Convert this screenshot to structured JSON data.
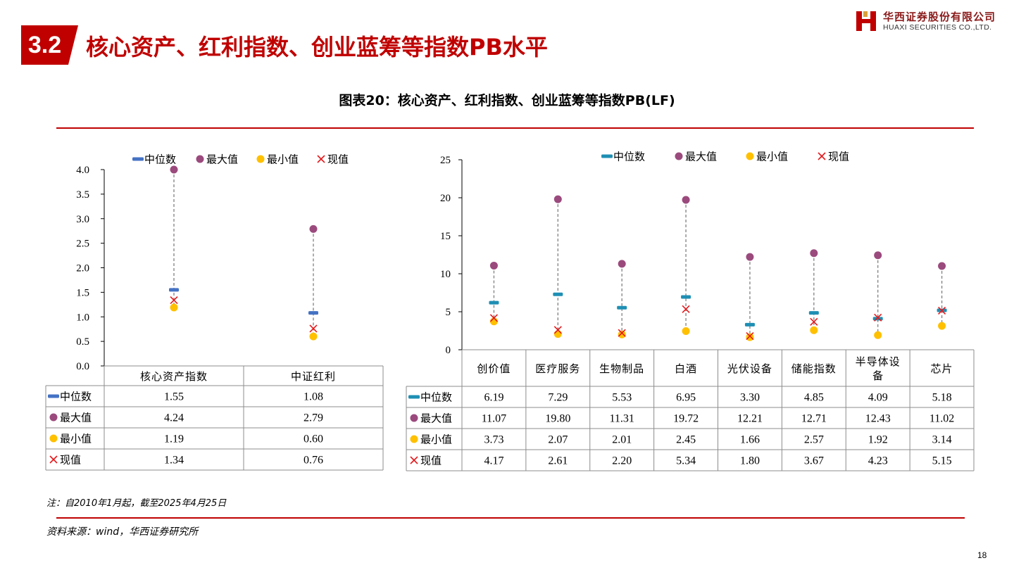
{
  "header": {
    "section_number": "3.2",
    "title": "核心资产、红利指数、创业蓝筹等指数PB水平",
    "logo_cn": "华西证券股份有限公司",
    "logo_en": "HUAXI SECURITIES CO.,LTD."
  },
  "figure_title": "图表20：核心资产、红利指数、创业蓝筹等指数PB(LF)",
  "legend": {
    "median": "中位数",
    "max": "最大值",
    "min": "最小值",
    "current": "现值"
  },
  "colors": {
    "accent_red": "#c00000",
    "left_median": "#4472c4",
    "right_median": "#1f8fb4",
    "max_marker": "#9b4a7d",
    "min_marker": "#ffc000",
    "current_marker": "#e31a1c"
  },
  "note": "注：自2010年1月起，截至2025年4月25日",
  "source": "资料来源：wind，华西证券研究所",
  "page_number": "18",
  "chart_data": [
    {
      "type": "table",
      "y_ticks": [
        "4.0",
        "3.5",
        "3.0",
        "2.5",
        "2.0",
        "1.5",
        "1.0",
        "0.5",
        "0.0"
      ],
      "ylim": [
        0,
        4
      ],
      "categories": [
        "核心资产指数",
        "中证红利"
      ],
      "series": [
        {
          "name": "中位数",
          "values": [
            1.55,
            1.08
          ],
          "display": [
            "1.55",
            "1.08"
          ]
        },
        {
          "name": "最大值",
          "values": [
            4.24,
            2.79
          ],
          "display": [
            "4.24",
            "2.79"
          ]
        },
        {
          "name": "最小值",
          "values": [
            1.19,
            0.6
          ],
          "display": [
            "1.19",
            "0.60"
          ]
        },
        {
          "name": "现值",
          "values": [
            1.34,
            0.76
          ],
          "display": [
            "1.34",
            "0.76"
          ]
        }
      ]
    },
    {
      "type": "table",
      "y_ticks": [
        "25",
        "20",
        "15",
        "10",
        "5",
        "0"
      ],
      "ylim": [
        0,
        25
      ],
      "categories": [
        "创价值",
        "医疗服务",
        "生物制品",
        "白酒",
        "光伏设备",
        "储能指数",
        "半导体设备",
        "芯片"
      ],
      "series": [
        {
          "name": "中位数",
          "values": [
            6.19,
            7.29,
            5.53,
            6.95,
            3.3,
            4.85,
            4.09,
            5.18
          ],
          "display": [
            "6.19",
            "7.29",
            "5.53",
            "6.95",
            "3.30",
            "4.85",
            "4.09",
            "5.18"
          ]
        },
        {
          "name": "最大值",
          "values": [
            11.07,
            19.8,
            11.31,
            19.72,
            12.21,
            12.71,
            12.43,
            11.02
          ],
          "display": [
            "11.07",
            "19.80",
            "11.31",
            "19.72",
            "12.21",
            "12.71",
            "12.43",
            "11.02"
          ]
        },
        {
          "name": "最小值",
          "values": [
            3.73,
            2.07,
            2.01,
            2.45,
            1.66,
            2.57,
            1.92,
            3.14
          ],
          "display": [
            "3.73",
            "2.07",
            "2.01",
            "2.45",
            "1.66",
            "2.57",
            "1.92",
            "3.14"
          ]
        },
        {
          "name": "现值",
          "values": [
            4.17,
            2.61,
            2.2,
            5.34,
            1.8,
            3.67,
            4.23,
            5.15
          ],
          "display": [
            "4.17",
            "2.61",
            "2.20",
            "5.34",
            "1.80",
            "3.67",
            "4.23",
            "5.15"
          ]
        }
      ]
    }
  ]
}
